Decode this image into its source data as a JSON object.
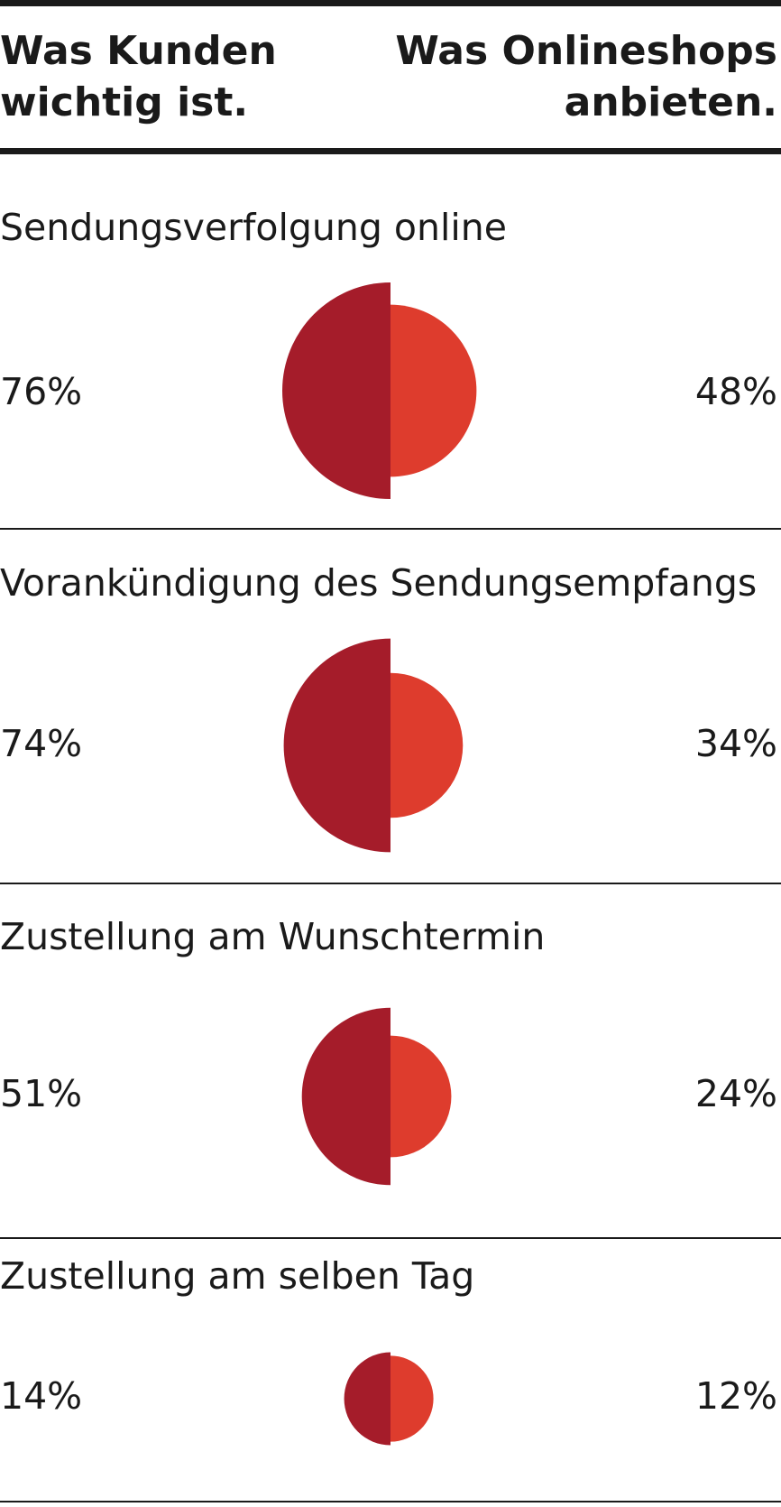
{
  "header": {
    "left_line1": "Was Kunden",
    "left_line2": "wichtig ist.",
    "right_line1": "Was Onlineshops",
    "right_line2": "anbieten."
  },
  "colors": {
    "customers": "#a51c2a",
    "shops": "#de3c2d",
    "rule": "#1a1a1a"
  },
  "chart_data": {
    "type": "half-circle comparison",
    "series": [
      {
        "name": "Was Kunden wichtig ist.",
        "color": "#a51c2a"
      },
      {
        "name": "Was Onlineshops anbieten.",
        "color": "#de3c2d"
      }
    ],
    "categories": [
      "Sendungsverfolgung online",
      "Vorankündigung des Sendungsempfangs",
      "Zustellung am Wunschtermin",
      "Zustellung am selben Tag"
    ],
    "rows": [
      {
        "label": "Sendungsverfolgung online",
        "customers": 76,
        "shops": 48,
        "customers_label": "76%",
        "shops_label": "48%"
      },
      {
        "label": "Vorankündigung des Sendungsempfangs",
        "customers": 74,
        "shops": 34,
        "customers_label": "74%",
        "shops_label": "34%"
      },
      {
        "label": "Zustellung am Wunschtermin",
        "customers": 51,
        "shops": 24,
        "customers_label": "51%",
        "shops_label": "24%"
      },
      {
        "label": "Zustellung am selben Tag",
        "customers": 14,
        "shops": 12,
        "customers_label": "14%",
        "shops_label": "12%"
      }
    ]
  }
}
